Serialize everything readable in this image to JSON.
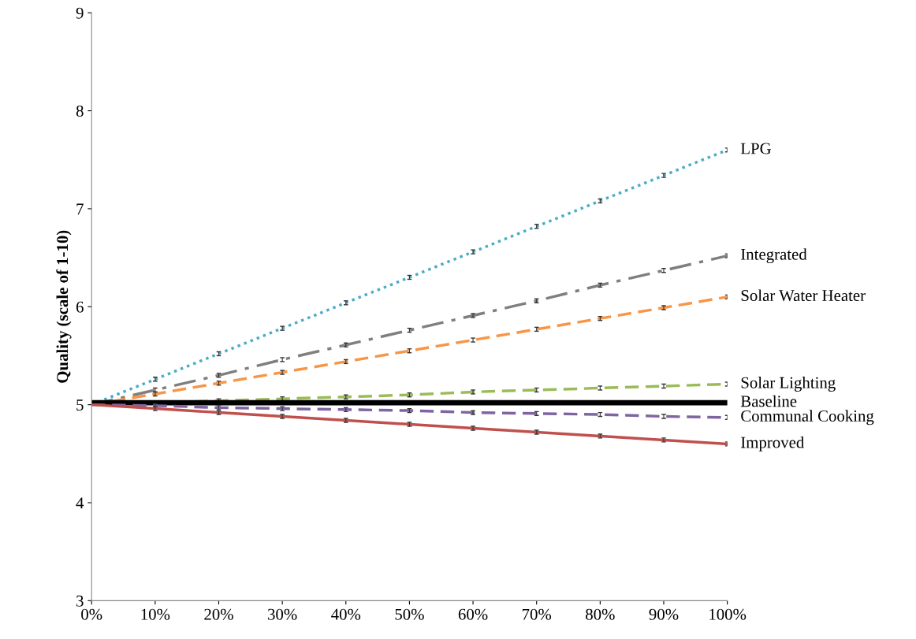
{
  "chart_data": {
    "type": "line",
    "ylabel": "Quality (scale of 1-10)",
    "x": [
      0,
      10,
      20,
      30,
      40,
      50,
      60,
      70,
      80,
      90,
      100
    ],
    "xlim": [
      0,
      100
    ],
    "xticks": [
      {
        "value": 0,
        "label": "0%"
      },
      {
        "value": 10,
        "label": "10%"
      },
      {
        "value": 20,
        "label": "20%"
      },
      {
        "value": 30,
        "label": "30%"
      },
      {
        "value": 40,
        "label": "40%"
      },
      {
        "value": 50,
        "label": "50%"
      },
      {
        "value": 60,
        "label": "60%"
      },
      {
        "value": 70,
        "label": "70%"
      },
      {
        "value": 80,
        "label": "80%"
      },
      {
        "value": 90,
        "label": "90%"
      },
      {
        "value": 100,
        "label": "100%"
      }
    ],
    "ylim": [
      3,
      9
    ],
    "yticks": [
      3,
      4,
      5,
      6,
      7,
      8,
      9
    ],
    "grid": false,
    "legend": false,
    "marker": "none",
    "series": [
      {
        "name": "LPG",
        "color": "#4bacc6",
        "line_style": "dotted",
        "values": [
          5.0,
          5.26,
          5.52,
          5.78,
          6.04,
          6.3,
          6.56,
          6.82,
          7.08,
          7.34,
          7.6
        ],
        "errors": [
          null,
          0.02,
          0.02,
          0.02,
          0.02,
          0.02,
          0.02,
          0.02,
          0.02,
          0.02,
          0.02
        ]
      },
      {
        "name": "Integrated",
        "color": "#7f7f7f",
        "line_style": "dashdot",
        "values": [
          5.0,
          5.15,
          5.3,
          5.46,
          5.61,
          5.76,
          5.91,
          6.06,
          6.22,
          6.37,
          6.52
        ],
        "errors": [
          null,
          0.02,
          0.02,
          0.02,
          0.02,
          0.02,
          0.02,
          0.02,
          0.02,
          0.02,
          0.02
        ]
      },
      {
        "name": "Solar Water Heater",
        "color": "#f79646",
        "line_style": "dashed",
        "values": [
          5.0,
          5.11,
          5.22,
          5.33,
          5.44,
          5.55,
          5.66,
          5.77,
          5.88,
          5.99,
          6.1
        ],
        "errors": [
          null,
          0.02,
          0.02,
          0.02,
          0.02,
          0.02,
          0.02,
          0.02,
          0.02,
          0.02,
          0.02
        ]
      },
      {
        "name": "Solar Lighting",
        "color": "#9bbb59",
        "line_style": "dashed",
        "values": [
          5.0,
          5.02,
          5.04,
          5.06,
          5.08,
          5.1,
          5.13,
          5.15,
          5.17,
          5.19,
          5.21
        ],
        "errors": [
          null,
          0.02,
          0.02,
          0.02,
          0.02,
          0.02,
          0.02,
          0.02,
          0.02,
          0.02,
          0.02
        ]
      },
      {
        "name": "Baseline",
        "color": "#000000",
        "line_style": "solid",
        "values": [
          5.02,
          5.02,
          5.02,
          5.02,
          5.02,
          5.02,
          5.02,
          5.02,
          5.02,
          5.02,
          5.02
        ]
      },
      {
        "name": "Communal Cooking",
        "color": "#8064a2",
        "line_style": "dashed",
        "values": [
          5.0,
          4.99,
          4.97,
          4.96,
          4.95,
          4.94,
          4.92,
          4.91,
          4.9,
          4.88,
          4.87
        ],
        "errors": [
          null,
          0.02,
          0.02,
          0.02,
          0.02,
          0.02,
          0.02,
          0.02,
          0.02,
          0.02,
          0.02
        ]
      },
      {
        "name": "Improved",
        "color": "#c0504d",
        "line_style": "solid",
        "values": [
          5.0,
          4.96,
          4.92,
          4.88,
          4.84,
          4.8,
          4.76,
          4.72,
          4.68,
          4.64,
          4.6
        ],
        "errors": [
          null,
          0.02,
          0.02,
          0.02,
          0.02,
          0.02,
          0.02,
          0.02,
          0.02,
          0.02,
          0.02
        ]
      }
    ]
  }
}
